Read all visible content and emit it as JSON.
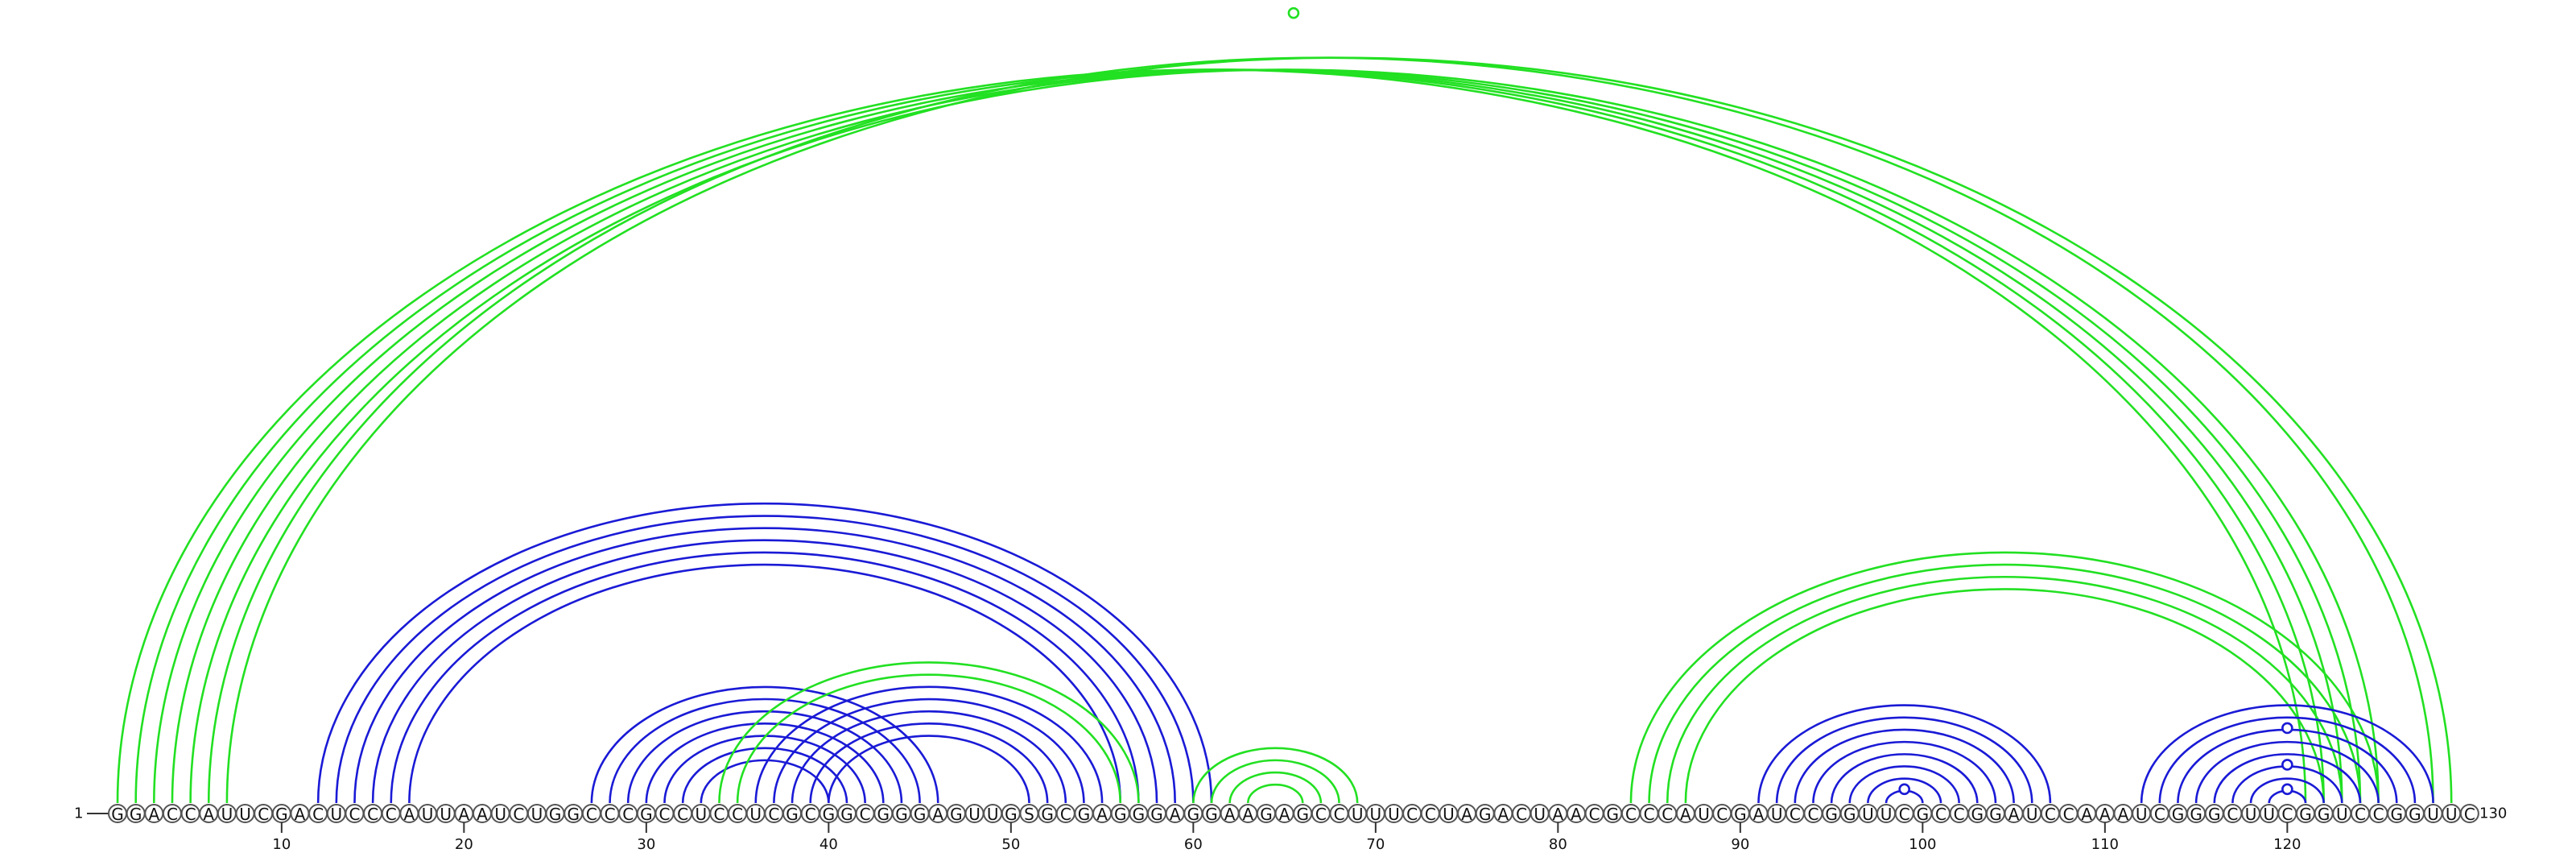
{
  "sequence": {
    "letters": "GGACCAUUCGACUCCCAUUAAUCUGGCCCGCCUCCUCGCGGCGGGAGUUGSGCGAGGGAGGAAGAGCCUUUCCUAGACUAACGCCCAUCGAUCCGGUUCGCCGGAUCCAAAUCGGGCUUCGGUCCGGUUC",
    "length": 130,
    "start_label": "1",
    "end_label": "130"
  },
  "ticks": {
    "positions": [
      10,
      20,
      30,
      40,
      50,
      60,
      70,
      80,
      90,
      100,
      110,
      120
    ],
    "labels": [
      "10",
      "20",
      "30",
      "40",
      "50",
      "60",
      "70",
      "80",
      "90",
      "100",
      "110",
      "120"
    ]
  },
  "colors": {
    "blue_pairs": "#1a1ad6",
    "green_pairs": "#22e022"
  },
  "chart_data": {
    "type": "arc-diagram",
    "axis": {
      "min": 1,
      "max": 130
    },
    "arc_sets": [
      {
        "color_key": "green_pairs",
        "side": "top",
        "pairs": [
          [
            1,
            121
          ],
          [
            2,
            122
          ],
          [
            3,
            123
          ],
          [
            4,
            124
          ],
          [
            5,
            125
          ],
          [
            6,
            128
          ],
          [
            7,
            129
          ]
        ]
      },
      {
        "color_key": "blue_pairs",
        "side": "top",
        "pairs": [
          [
            12,
            61
          ],
          [
            13,
            60
          ],
          [
            14,
            59
          ],
          [
            15,
            58
          ],
          [
            16,
            57
          ],
          [
            17,
            56
          ]
        ]
      },
      {
        "color_key": "blue_pairs",
        "side": "top",
        "pairs": [
          [
            27,
            46
          ],
          [
            28,
            45
          ],
          [
            29,
            44
          ],
          [
            30,
            43
          ],
          [
            31,
            42
          ],
          [
            32,
            41
          ],
          [
            33,
            40
          ]
        ]
      },
      {
        "color_key": "blue_pairs",
        "side": "top",
        "pairs": [
          [
            36,
            55
          ],
          [
            37,
            54
          ],
          [
            38,
            53
          ],
          [
            39,
            52
          ],
          [
            40,
            51
          ]
        ]
      },
      {
        "color_key": "green_pairs",
        "side": "top",
        "pairs": [
          [
            34,
            57
          ],
          [
            35,
            56
          ]
        ]
      },
      {
        "color_key": "green_pairs",
        "side": "top",
        "pairs": [
          [
            60,
            69
          ],
          [
            61,
            68
          ],
          [
            62,
            67
          ],
          [
            63,
            66
          ]
        ]
      },
      {
        "color_key": "green_pairs",
        "side": "top",
        "pairs": [
          [
            84,
            125
          ],
          [
            85,
            124
          ],
          [
            86,
            123
          ],
          [
            87,
            122
          ]
        ]
      },
      {
        "color_key": "blue_pairs",
        "side": "top",
        "pairs": [
          [
            91,
            107
          ],
          [
            92,
            106
          ],
          [
            93,
            105
          ],
          [
            94,
            104
          ],
          [
            95,
            103
          ],
          [
            96,
            102
          ],
          [
            97,
            101
          ],
          [
            98,
            100
          ]
        ]
      },
      {
        "color_key": "blue_pairs",
        "side": "top",
        "pairs": [
          [
            112,
            128
          ],
          [
            113,
            127
          ],
          [
            114,
            126
          ],
          [
            115,
            125
          ],
          [
            116,
            124
          ],
          [
            117,
            123
          ],
          [
            118,
            122
          ],
          [
            119,
            121
          ]
        ]
      }
    ],
    "unpaired_markers": [
      {
        "color_key": "green_pairs",
        "pair": [
          1,
          130
        ]
      },
      {
        "color_key": "blue_pairs",
        "pair": [
          98,
          100
        ]
      },
      {
        "color_key": "blue_pairs",
        "pair": [
          119,
          121
        ]
      },
      {
        "color_key": "blue_pairs",
        "pair": [
          117,
          123
        ]
      },
      {
        "color_key": "blue_pairs",
        "pair": [
          114,
          126
        ]
      }
    ]
  }
}
